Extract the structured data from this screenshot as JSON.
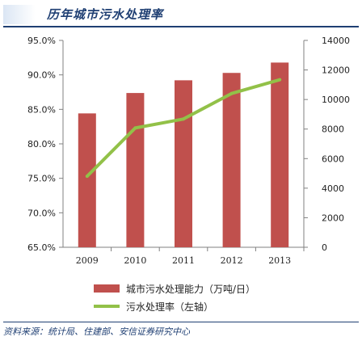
{
  "title": "历年城市污水处理率",
  "source": "资料来源：统计局、住建部、安信证券研究中心",
  "colors": {
    "bar": "#c0504d",
    "line": "#92c148",
    "title": "#1f3f73"
  },
  "chart_data": {
    "type": "bar",
    "categories": [
      "2009",
      "2010",
      "2011",
      "2012",
      "2013"
    ],
    "series": [
      {
        "name": "城市污水处理能力（万吨/日）",
        "type": "bar",
        "axis": "right",
        "values": [
          9060,
          10440,
          11300,
          11800,
          12500
        ]
      },
      {
        "name": "污水处理率（左轴）",
        "type": "line",
        "axis": "left",
        "values": [
          75.3,
          82.3,
          83.6,
          87.3,
          89.3
        ]
      }
    ],
    "y_left": {
      "min": 65,
      "max": 95,
      "ticks": [
        "65.0%",
        "70.0%",
        "75.0%",
        "80.0%",
        "85.0%",
        "90.0%",
        "95.0%"
      ]
    },
    "y_right": {
      "min": 0,
      "max": 14000,
      "ticks": [
        "0",
        "2000",
        "4000",
        "6000",
        "8000",
        "10000",
        "12000",
        "14000"
      ]
    },
    "grid": false,
    "legend_position": "bottom"
  }
}
